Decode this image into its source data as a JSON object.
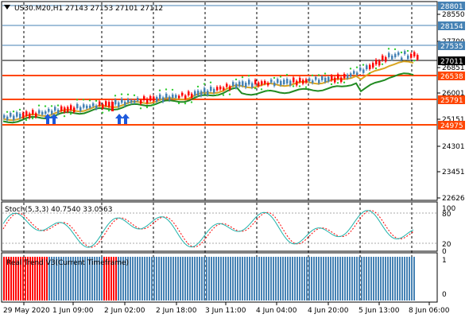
{
  "header": {
    "triangle_icon": "triangle-down-icon",
    "symbol_line": "US30.M20,H1  27143 27153 27101 27112"
  },
  "price_axis": {
    "ticks": [
      "28550",
      "27700",
      "26851",
      "26001",
      "25151",
      "24301",
      "23451",
      "22626"
    ],
    "badges": [
      {
        "label": "28801",
        "color": "#4682b4"
      },
      {
        "label": "28154",
        "color": "#4682b4"
      },
      {
        "label": "27535",
        "color": "#4682b4"
      },
      {
        "label": "27011",
        "color": "#000000"
      },
      {
        "label": "26538",
        "color": "#ff4500"
      },
      {
        "label": "25791",
        "color": "#ff4500"
      },
      {
        "label": "24975",
        "color": "#ff4500"
      }
    ]
  },
  "stoch": {
    "label": "Stoch(5,3,3) 40.7540 33.0563",
    "axis": [
      "100",
      "80",
      "20",
      "0"
    ],
    "main_color": "#20b2aa",
    "signal_color": "#ff0000"
  },
  "trend": {
    "label": "Real Trend V3(Current Timeframe)",
    "axis": [
      "1",
      "0"
    ],
    "bull_color": "#4682b4",
    "bear_color": "#ff0000"
  },
  "time_axis": [
    "29 May 2020",
    "1 Jun 09:00",
    "2 Jun 02:00",
    "2 Jun 18:00",
    "3 Jun 11:00",
    "4 Jun 04:00",
    "4 Jun 20:00",
    "5 Jun 13:00",
    "8 Jun 06:00"
  ],
  "colors": {
    "bull_candle": "#4682b4",
    "bear_candle": "#ff0000",
    "ma_fast": "#daa520",
    "ma_slow": "#228b22",
    "dots": "#32cd32"
  }
}
